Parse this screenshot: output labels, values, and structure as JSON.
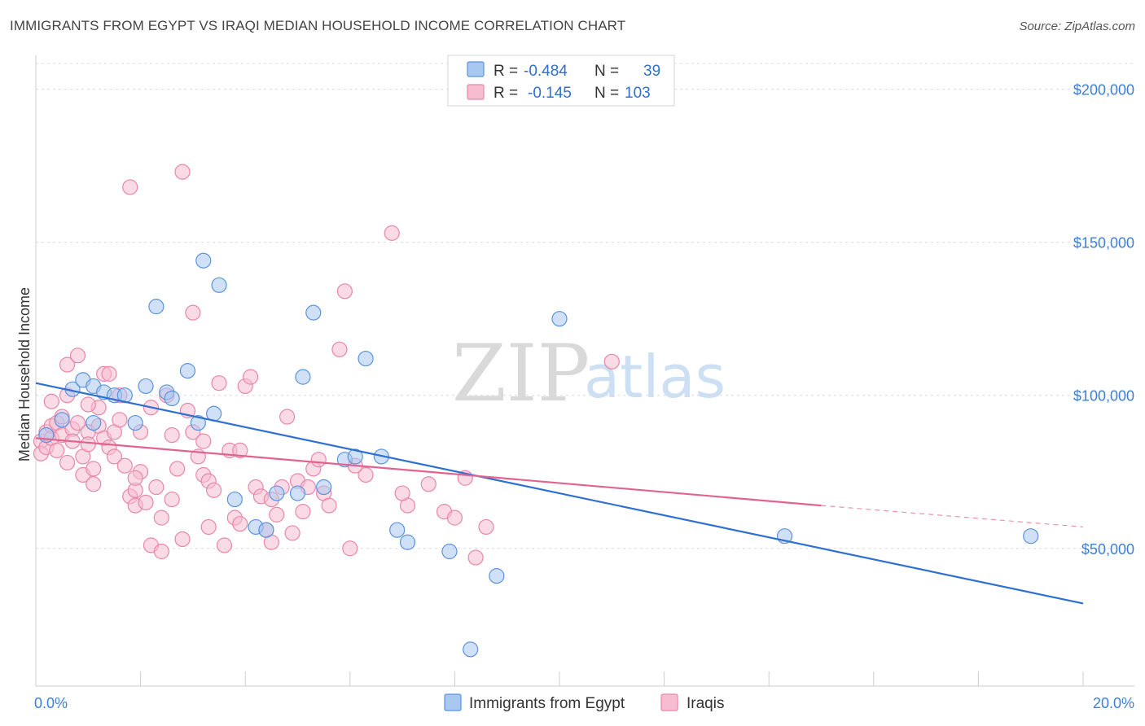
{
  "title": "IMMIGRANTS FROM EGYPT VS IRAQI MEDIAN HOUSEHOLD INCOME CORRELATION CHART",
  "source": "Source: ZipAtlas.com",
  "watermark": {
    "zip": "ZIP",
    "atlas": "atlas"
  },
  "colors": {
    "egypt_fill": "#a9c8f0",
    "egypt_stroke": "#5b93dd",
    "egypt_line": "#2f6fd2",
    "iraqi_fill": "#f6bcd0",
    "iraqi_stroke": "#e887a8",
    "iraqi_line": "#e0648f",
    "grid": "#dcdcdc",
    "tick_text": "#3d7fd6"
  },
  "legend": {
    "rows": [
      {
        "r_label": "R =",
        "r_value": "-0.484",
        "n_label": "N =",
        "n_value": "39"
      },
      {
        "r_label": "R =",
        "r_value": "-0.145",
        "n_label": "N =",
        "n_value": "103"
      }
    ]
  },
  "chart_data": {
    "type": "scatter",
    "title": "IMMIGRANTS FROM EGYPT VS IRAQI MEDIAN HOUSEHOLD INCOME CORRELATION CHART",
    "xlabel": "",
    "ylabel": "Median Household Income",
    "xlim": [
      0,
      20
    ],
    "ylim": [
      5000,
      210000
    ],
    "x_tick_labels": [
      "0.0%",
      "20.0%"
    ],
    "y_ticks": [
      50000,
      100000,
      150000,
      200000
    ],
    "y_tick_labels": [
      "$50,000",
      "$100,000",
      "$150,000",
      "$200,000"
    ],
    "grid": true,
    "legend_position": "top-center",
    "series": [
      {
        "name": "Immigrants from Egypt",
        "R": -0.484,
        "N": 39,
        "trend": {
          "x": [
            0,
            20
          ],
          "y": [
            104000,
            32000
          ]
        },
        "points": [
          [
            0.2,
            87000
          ],
          [
            0.5,
            92000
          ],
          [
            0.7,
            102000
          ],
          [
            0.9,
            105000
          ],
          [
            1.1,
            103000
          ],
          [
            1.1,
            91000
          ],
          [
            1.3,
            101000
          ],
          [
            1.5,
            100000
          ],
          [
            1.7,
            100000
          ],
          [
            1.9,
            91000
          ],
          [
            2.1,
            103000
          ],
          [
            2.3,
            129000
          ],
          [
            2.5,
            101000
          ],
          [
            2.6,
            99000
          ],
          [
            2.9,
            108000
          ],
          [
            3.1,
            91000
          ],
          [
            3.2,
            144000
          ],
          [
            3.4,
            94000
          ],
          [
            3.5,
            136000
          ],
          [
            3.8,
            66000
          ],
          [
            4.2,
            57000
          ],
          [
            4.4,
            56000
          ],
          [
            4.6,
            68000
          ],
          [
            5.0,
            68000
          ],
          [
            5.1,
            106000
          ],
          [
            5.3,
            127000
          ],
          [
            5.5,
            70000
          ],
          [
            5.9,
            79000
          ],
          [
            6.1,
            80000
          ],
          [
            6.3,
            112000
          ],
          [
            6.6,
            80000
          ],
          [
            6.9,
            56000
          ],
          [
            7.1,
            52000
          ],
          [
            7.9,
            49000
          ],
          [
            8.3,
            17000
          ],
          [
            8.8,
            41000
          ],
          [
            10.0,
            125000
          ],
          [
            14.3,
            54000
          ],
          [
            19.0,
            54000
          ]
        ]
      },
      {
        "name": "Iraqis",
        "R": -0.145,
        "N": 103,
        "trend": {
          "x": [
            0,
            15
          ],
          "y": [
            86000,
            64000
          ]
        },
        "trend_dashed": {
          "x": [
            15,
            20
          ],
          "y": [
            64000,
            57000
          ]
        },
        "points": [
          [
            0.1,
            85000
          ],
          [
            0.1,
            81000
          ],
          [
            0.2,
            88000
          ],
          [
            0.2,
            83000
          ],
          [
            0.3,
            90000
          ],
          [
            0.3,
            86000
          ],
          [
            0.4,
            91000
          ],
          [
            0.4,
            82000
          ],
          [
            0.5,
            93000
          ],
          [
            0.5,
            87000
          ],
          [
            0.6,
            78000
          ],
          [
            0.6,
            110000
          ],
          [
            0.7,
            89000
          ],
          [
            0.7,
            85000
          ],
          [
            0.8,
            113000
          ],
          [
            0.8,
            91000
          ],
          [
            0.9,
            80000
          ],
          [
            0.9,
            74000
          ],
          [
            1.0,
            88000
          ],
          [
            1.0,
            84000
          ],
          [
            1.1,
            76000
          ],
          [
            1.1,
            71000
          ],
          [
            1.2,
            96000
          ],
          [
            1.2,
            90000
          ],
          [
            1.3,
            86000
          ],
          [
            1.3,
            107000
          ],
          [
            1.4,
            107000
          ],
          [
            1.4,
            83000
          ],
          [
            1.5,
            88000
          ],
          [
            1.5,
            80000
          ],
          [
            1.6,
            100000
          ],
          [
            1.6,
            92000
          ],
          [
            1.7,
            77000
          ],
          [
            1.8,
            67000
          ],
          [
            1.8,
            168000
          ],
          [
            1.9,
            64000
          ],
          [
            1.9,
            69000
          ],
          [
            2.0,
            88000
          ],
          [
            2.0,
            75000
          ],
          [
            2.1,
            65000
          ],
          [
            2.2,
            51000
          ],
          [
            2.2,
            96000
          ],
          [
            2.3,
            70000
          ],
          [
            2.4,
            60000
          ],
          [
            2.4,
            49000
          ],
          [
            2.5,
            100000
          ],
          [
            2.6,
            87000
          ],
          [
            2.7,
            76000
          ],
          [
            2.8,
            53000
          ],
          [
            2.8,
            173000
          ],
          [
            2.9,
            95000
          ],
          [
            3.0,
            127000
          ],
          [
            3.0,
            88000
          ],
          [
            3.1,
            80000
          ],
          [
            3.2,
            74000
          ],
          [
            3.3,
            57000
          ],
          [
            3.3,
            72000
          ],
          [
            3.4,
            69000
          ],
          [
            3.5,
            104000
          ],
          [
            3.6,
            51000
          ],
          [
            3.7,
            82000
          ],
          [
            3.8,
            60000
          ],
          [
            3.9,
            82000
          ],
          [
            4.0,
            103000
          ],
          [
            4.1,
            106000
          ],
          [
            4.2,
            70000
          ],
          [
            4.3,
            67000
          ],
          [
            4.4,
            56000
          ],
          [
            4.5,
            52000
          ],
          [
            4.6,
            61000
          ],
          [
            4.7,
            70000
          ],
          [
            4.8,
            93000
          ],
          [
            4.9,
            55000
          ],
          [
            5.0,
            72000
          ],
          [
            5.1,
            62000
          ],
          [
            5.3,
            76000
          ],
          [
            5.4,
            79000
          ],
          [
            5.5,
            68000
          ],
          [
            5.6,
            64000
          ],
          [
            5.8,
            115000
          ],
          [
            5.9,
            134000
          ],
          [
            6.0,
            50000
          ],
          [
            6.3,
            74000
          ],
          [
            6.8,
            153000
          ],
          [
            7.1,
            64000
          ],
          [
            7.5,
            71000
          ],
          [
            7.8,
            62000
          ],
          [
            8.0,
            60000
          ],
          [
            8.2,
            73000
          ],
          [
            8.4,
            47000
          ],
          [
            0.3,
            98000
          ],
          [
            1.0,
            97000
          ],
          [
            1.9,
            73000
          ],
          [
            2.6,
            66000
          ],
          [
            3.2,
            85000
          ],
          [
            3.9,
            58000
          ],
          [
            4.5,
            66000
          ],
          [
            5.2,
            70000
          ],
          [
            6.1,
            77000
          ],
          [
            7.0,
            68000
          ],
          [
            8.6,
            57000
          ],
          [
            11.0,
            111000
          ],
          [
            0.6,
            100000
          ]
        ]
      }
    ],
    "bottom_legend": [
      "Immigrants from Egypt",
      "Iraqis"
    ]
  }
}
